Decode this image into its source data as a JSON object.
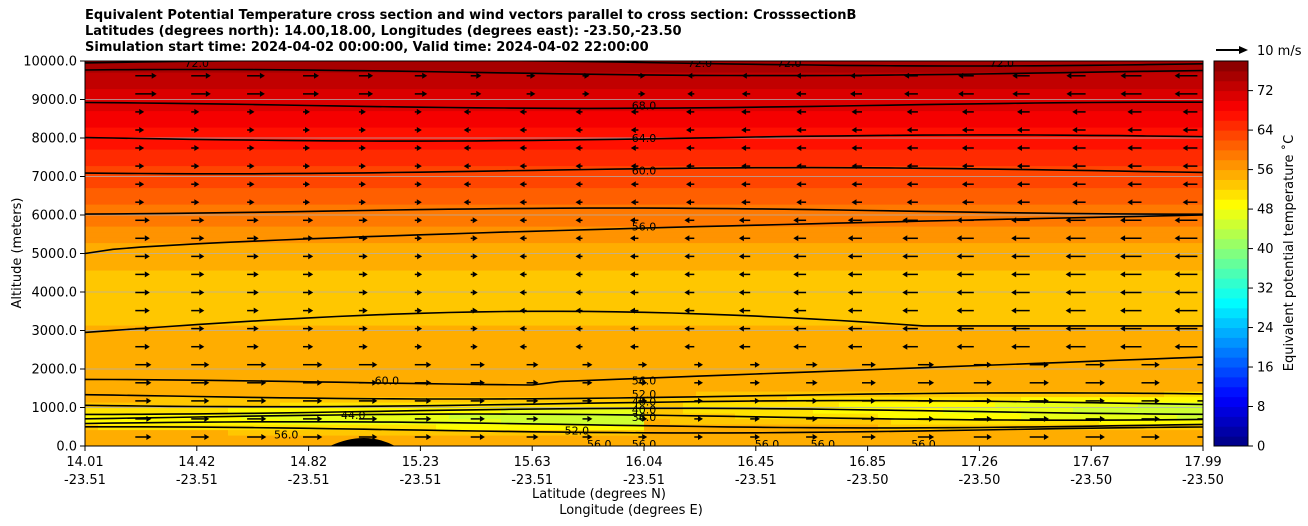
{
  "chart_data": {
    "type": "heatmap",
    "title_lines": [
      "Equivalent Potential Temperature cross section and wind vectors parallel to cross section: CrosssectionB",
      "Latitudes (degrees north): 14.00,18.00, Longitudes (degrees east): -23.50,-23.50",
      "Simulation start time: 2024-04-02 00:00:00, Valid time: 2024-04-02 22:00:00"
    ],
    "xlabel_lat": "Latitude (degrees N)",
    "xlabel_lon": "Longitude (degrees E)",
    "ylabel": "Altitude (meters)",
    "colorbar_label": "Equivalent potential temperature ˚C",
    "quiver_key_label": "10 m/s",
    "ylim": [
      0,
      10000
    ],
    "yticks": [
      "0.0",
      "1000.0",
      "2000.0",
      "3000.0",
      "4000.0",
      "5000.0",
      "6000.0",
      "7000.0",
      "8000.0",
      "9000.0",
      "10000.0"
    ],
    "xticks": [
      {
        "lat": "14.01",
        "lon": "-23.51"
      },
      {
        "lat": "14.42",
        "lon": "-23.51"
      },
      {
        "lat": "14.82",
        "lon": "-23.51"
      },
      {
        "lat": "15.23",
        "lon": "-23.51"
      },
      {
        "lat": "15.63",
        "lon": "-23.51"
      },
      {
        "lat": "16.04",
        "lon": "-23.51"
      },
      {
        "lat": "16.45",
        "lon": "-23.51"
      },
      {
        "lat": "16.85",
        "lon": "-23.50"
      },
      {
        "lat": "17.26",
        "lon": "-23.50"
      },
      {
        "lat": "17.67",
        "lon": "-23.50"
      },
      {
        "lat": "17.99",
        "lon": "-23.50"
      }
    ],
    "colorbar_ticks": [
      "0",
      "8",
      "16",
      "24",
      "32",
      "40",
      "48",
      "56",
      "64",
      "72"
    ],
    "colorbar_range": [
      0,
      78
    ],
    "contour_labels": [
      {
        "text": "72.0",
        "x": 0.55,
        "y": 9950
      },
      {
        "text": "72.0",
        "x": 0.1,
        "y": 9950
      },
      {
        "text": "72.0",
        "x": 0.63,
        "y": 9950
      },
      {
        "text": "72.0",
        "x": 0.82,
        "y": 9950
      },
      {
        "text": "68.0",
        "x": 0.5,
        "y": 8850
      },
      {
        "text": "64.0",
        "x": 0.5,
        "y": 8000
      },
      {
        "text": "60.0",
        "x": 0.5,
        "y": 7150
      },
      {
        "text": "56.0",
        "x": 0.5,
        "y": 5700
      },
      {
        "text": "56.0",
        "x": 0.5,
        "y": 1700
      },
      {
        "text": "52.0",
        "x": 0.5,
        "y": 1350
      },
      {
        "text": "48.0",
        "x": 0.5,
        "y": 1150
      },
      {
        "text": "40.0",
        "x": 0.5,
        "y": 950
      },
      {
        "text": "36.0",
        "x": 0.5,
        "y": 750
      },
      {
        "text": "44.0",
        "x": 0.24,
        "y": 800
      },
      {
        "text": "56.0",
        "x": 0.18,
        "y": 300
      },
      {
        "text": "52.0",
        "x": 0.44,
        "y": 400
      },
      {
        "text": "56.0",
        "x": 0.46,
        "y": 50
      },
      {
        "text": "56.0",
        "x": 0.5,
        "y": 50
      },
      {
        "text": "56.0",
        "x": 0.61,
        "y": 50
      },
      {
        "text": "56.0",
        "x": 0.66,
        "y": 50
      },
      {
        "text": "56.0",
        "x": 0.75,
        "y": 50
      },
      {
        "text": "60.0",
        "x": 0.27,
        "y": 1700
      }
    ],
    "colors": {
      "colormap": "jet",
      "contour": "#000000",
      "grid": "#b0b0b0"
    }
  }
}
